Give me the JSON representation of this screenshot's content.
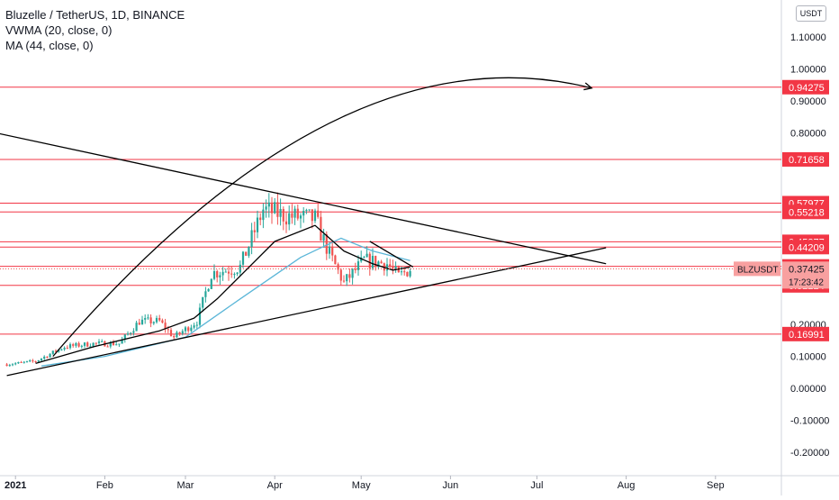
{
  "legend": {
    "title": "Bluzelle / TetherUS, 1D, BINANCE",
    "indicator_1": "VWMA (20, close, 0)",
    "indicator_2": "MA (44, close, 0)"
  },
  "currency": "USDT",
  "symbol": "BLZUSDT",
  "last_price": "0.37425",
  "countdown": "17:23:42",
  "colors": {
    "up": "#26a69a",
    "down": "#ef5350",
    "vwma": "#000000",
    "ma": "#5bb6d8",
    "hline": "#f23645",
    "trend": "#000000"
  },
  "chart_data": {
    "type": "candlestick",
    "title": "Bluzelle / TetherUS, 1D, BINANCE",
    "y_range": [
      -0.25,
      1.25
    ],
    "y_ticks": [
      "1.10000",
      "1.00000",
      "0.90000",
      "0.80000",
      "0.20000",
      "0.10000",
      "0.00000",
      "-0.10000",
      "-0.20000"
    ],
    "x_ticks": [
      "2021",
      "Feb",
      "Mar",
      "Apr",
      "May",
      "Jun",
      "Jul",
      "Aug",
      "Sep"
    ],
    "horizontal_levels": [
      "0.94275",
      "0.71658",
      "0.57977",
      "0.55218",
      "0.45877",
      "0.44209",
      "0.38185",
      "0.32224",
      "0.16991"
    ],
    "close_anchors": [
      {
        "date": "2020-12-29",
        "close": 0.075
      },
      {
        "date": "2021-01-08",
        "close": 0.085
      },
      {
        "date": "2021-01-18",
        "close": 0.13
      },
      {
        "date": "2021-01-28",
        "close": 0.14
      },
      {
        "date": "2021-02-06",
        "close": 0.14
      },
      {
        "date": "2021-02-13",
        "close": 0.21
      },
      {
        "date": "2021-02-20",
        "close": 0.21
      },
      {
        "date": "2021-02-25",
        "close": 0.16
      },
      {
        "date": "2021-03-05",
        "close": 0.21
      },
      {
        "date": "2021-03-10",
        "close": 0.36
      },
      {
        "date": "2021-03-20",
        "close": 0.38
      },
      {
        "date": "2021-03-28",
        "close": 0.56
      },
      {
        "date": "2021-04-05",
        "close": 0.54
      },
      {
        "date": "2021-04-15",
        "close": 0.53
      },
      {
        "date": "2021-04-20",
        "close": 0.42
      },
      {
        "date": "2021-04-25",
        "close": 0.33
      },
      {
        "date": "2021-05-02",
        "close": 0.4
      },
      {
        "date": "2021-05-10",
        "close": 0.39
      },
      {
        "date": "2021-05-14",
        "close": 0.35
      },
      {
        "date": "2021-05-18",
        "close": 0.37425
      }
    ],
    "vwma_curve": [
      {
        "date": "2021-01-08",
        "value": 0.078
      },
      {
        "date": "2021-01-28",
        "value": 0.13
      },
      {
        "date": "2021-02-20",
        "value": 0.18
      },
      {
        "date": "2021-03-04",
        "value": 0.22
      },
      {
        "date": "2021-03-12",
        "value": 0.28
      },
      {
        "date": "2021-03-22",
        "value": 0.37
      },
      {
        "date": "2021-04-01",
        "value": 0.46
      },
      {
        "date": "2021-04-15",
        "value": 0.51
      },
      {
        "date": "2021-04-25",
        "value": 0.43
      },
      {
        "date": "2021-05-05",
        "value": 0.39
      },
      {
        "date": "2021-05-12",
        "value": 0.37
      },
      {
        "date": "2021-05-18",
        "value": 0.38
      }
    ],
    "ma_curve": [
      {
        "date": "2021-01-10",
        "value": 0.07
      },
      {
        "date": "2021-02-01",
        "value": 0.1
      },
      {
        "date": "2021-03-01",
        "value": 0.16
      },
      {
        "date": "2021-03-20",
        "value": 0.28
      },
      {
        "date": "2021-04-10",
        "value": 0.41
      },
      {
        "date": "2021-04-24",
        "value": 0.47
      },
      {
        "date": "2021-05-05",
        "value": 0.43
      },
      {
        "date": "2021-05-18",
        "value": 0.4
      }
    ],
    "trendlines": [
      {
        "from": {
          "date": "2020-12-25",
          "value": 0.8
        },
        "to": {
          "date": "2021-07-25",
          "value": 0.39
        }
      },
      {
        "from": {
          "date": "2020-12-29",
          "value": 0.04
        },
        "to": {
          "date": "2021-07-25",
          "value": 0.44
        }
      },
      {
        "from": {
          "date": "2021-05-04",
          "value": 0.46
        },
        "to": {
          "date": "2021-05-19",
          "value": 0.38
        }
      }
    ],
    "arc": {
      "from": {
        "date": "2021-01-14",
        "value": 0.1
      },
      "via": {
        "date": "2021-04-20",
        "value": 0.83
      },
      "to": {
        "date": "2021-07-20",
        "value": 0.94
      }
    }
  }
}
